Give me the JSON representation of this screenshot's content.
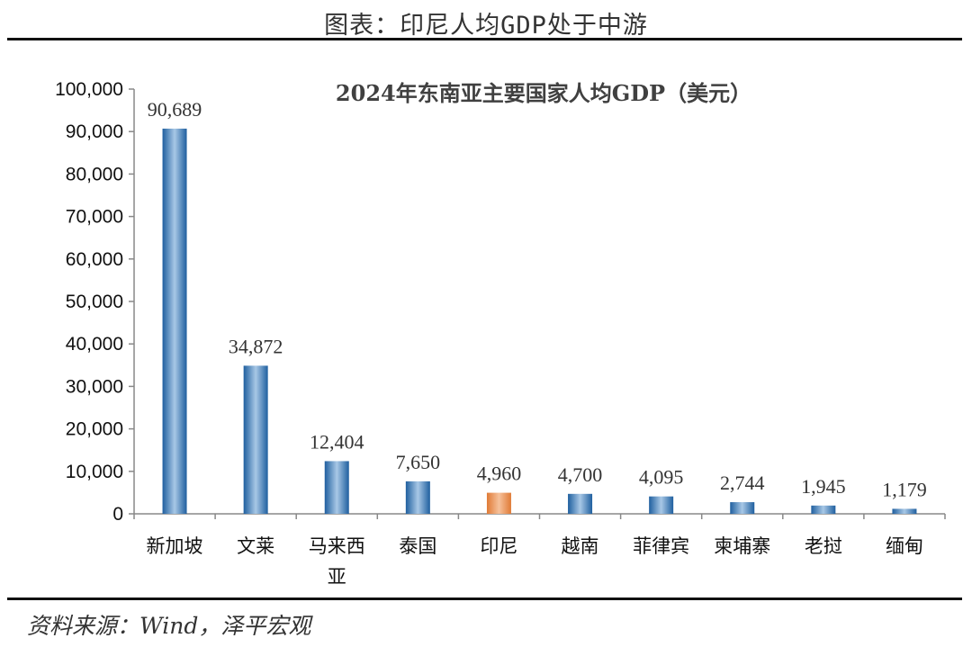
{
  "header": {
    "title": "图表：印尼人均GDP处于中游"
  },
  "source": {
    "text": "资料来源：Wind，泽平宏观"
  },
  "chart_data": {
    "type": "bar",
    "title": "2024年东南亚主要国家人均GDP（美元）",
    "xlabel": "",
    "ylabel": "",
    "categories": [
      "新加坡",
      "文莱",
      "马来西亚",
      "泰国",
      "印尼",
      "越南",
      "菲律宾",
      "柬埔寨",
      "老挝",
      "缅甸"
    ],
    "values": [
      90689,
      34872,
      12404,
      7650,
      4960,
      4700,
      4095,
      2744,
      1945,
      1179
    ],
    "data_labels": [
      "90,689",
      "34,872",
      "12,404",
      "7,650",
      "4,960",
      "4,700",
      "4,095",
      "2,744",
      "1,945",
      "1,179"
    ],
    "ylim": [
      0,
      100000
    ],
    "yticks": [
      0,
      10000,
      20000,
      30000,
      40000,
      50000,
      60000,
      70000,
      80000,
      90000,
      100000
    ],
    "ytick_labels": [
      "0",
      "10,000",
      "20,000",
      "30,000",
      "40,000",
      "50,000",
      "60,000",
      "70,000",
      "80,000",
      "90,000",
      "100,000"
    ],
    "grid": false,
    "legend": "none",
    "colors": {
      "default_bar": "#3a7bbf",
      "highlight_bar": "#e8874a",
      "highlight_category": "印尼"
    }
  }
}
